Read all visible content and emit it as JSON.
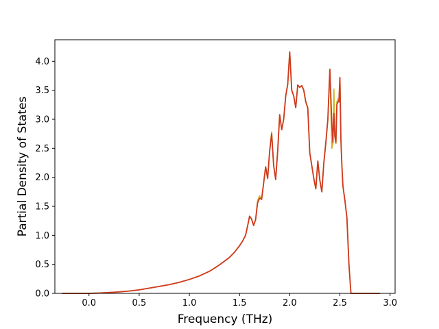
{
  "chart_data": {
    "type": "line",
    "title": "",
    "xlabel": "Frequency (THz)",
    "ylabel": "Partial Density of States",
    "xlim": [
      -0.34,
      3.05
    ],
    "ylim": [
      0.0,
      4.37
    ],
    "xticks": [
      "0.0",
      "0.5",
      "1.0",
      "1.5",
      "2.0",
      "2.5",
      "3.0"
    ],
    "yticks": [
      "0.0",
      "0.5",
      "1.0",
      "1.5",
      "2.0",
      "2.5",
      "3.0",
      "3.5",
      "4.0"
    ],
    "grid": false,
    "legend": "none",
    "series": [
      {
        "color": "#d4b52c",
        "x": [
          -0.27,
          -0.1,
          0.0,
          0.1,
          0.2,
          0.3,
          0.4,
          0.5,
          0.6,
          0.7,
          0.8,
          0.9,
          1.0,
          1.1,
          1.2,
          1.3,
          1.4,
          1.45,
          1.5,
          1.53,
          1.56,
          1.58,
          1.6,
          1.62,
          1.64,
          1.66,
          1.68,
          1.7,
          1.72,
          1.74,
          1.76,
          1.78,
          1.8,
          1.82,
          1.84,
          1.86,
          1.88,
          1.9,
          1.92,
          1.94,
          1.96,
          1.98,
          2.0,
          2.02,
          2.04,
          2.06,
          2.08,
          2.1,
          2.12,
          2.14,
          2.16,
          2.18,
          2.2,
          2.22,
          2.24,
          2.26,
          2.28,
          2.3,
          2.32,
          2.34,
          2.36,
          2.38,
          2.4,
          2.42,
          2.43,
          2.44,
          2.45,
          2.46,
          2.47,
          2.48,
          2.49,
          2.5,
          2.51,
          2.52,
          2.53,
          2.55,
          2.57,
          2.59,
          2.61,
          2.62,
          2.63,
          2.64,
          2.65,
          2.7,
          2.8,
          2.9
        ],
        "y": [
          0.0,
          0.0,
          0.0,
          0.005,
          0.015,
          0.025,
          0.04,
          0.06,
          0.09,
          0.12,
          0.15,
          0.19,
          0.24,
          0.3,
          0.38,
          0.49,
          0.62,
          0.71,
          0.82,
          0.9,
          1.0,
          1.16,
          1.33,
          1.28,
          1.17,
          1.27,
          1.6,
          1.68,
          1.62,
          1.9,
          2.18,
          1.98,
          2.45,
          2.78,
          2.2,
          1.98,
          2.45,
          3.08,
          2.82,
          3.0,
          3.4,
          3.6,
          4.16,
          3.5,
          3.4,
          3.2,
          3.59,
          3.55,
          3.58,
          3.5,
          3.3,
          3.18,
          2.42,
          2.2,
          1.98,
          1.8,
          2.28,
          1.95,
          1.75,
          2.25,
          2.6,
          3.0,
          3.86,
          2.5,
          2.58,
          3.52,
          2.7,
          2.58,
          3.3,
          3.35,
          3.3,
          3.72,
          2.65,
          2.2,
          1.85,
          1.6,
          1.3,
          0.5,
          0.0,
          0.0,
          0.0,
          0.0,
          0.0,
          0.0,
          0.0,
          0.0
        ]
      },
      {
        "color": "#d03a22",
        "x": [
          -0.27,
          -0.1,
          0.0,
          0.1,
          0.2,
          0.3,
          0.4,
          0.5,
          0.6,
          0.7,
          0.8,
          0.9,
          1.0,
          1.1,
          1.2,
          1.3,
          1.4,
          1.45,
          1.5,
          1.53,
          1.56,
          1.58,
          1.6,
          1.62,
          1.64,
          1.66,
          1.68,
          1.7,
          1.72,
          1.74,
          1.76,
          1.78,
          1.8,
          1.82,
          1.84,
          1.86,
          1.88,
          1.9,
          1.92,
          1.94,
          1.96,
          1.98,
          2.0,
          2.02,
          2.04,
          2.06,
          2.08,
          2.1,
          2.12,
          2.14,
          2.16,
          2.18,
          2.2,
          2.22,
          2.24,
          2.26,
          2.28,
          2.3,
          2.32,
          2.34,
          2.36,
          2.38,
          2.4,
          2.42,
          2.43,
          2.44,
          2.45,
          2.46,
          2.47,
          2.48,
          2.49,
          2.5,
          2.51,
          2.52,
          2.53,
          2.55,
          2.57,
          2.59,
          2.61,
          2.62,
          2.63,
          2.64,
          2.65,
          2.7,
          2.8,
          2.9
        ],
        "y": [
          0.0,
          0.0,
          0.0,
          0.005,
          0.015,
          0.025,
          0.04,
          0.06,
          0.09,
          0.12,
          0.15,
          0.19,
          0.24,
          0.3,
          0.38,
          0.49,
          0.62,
          0.71,
          0.82,
          0.9,
          1.0,
          1.16,
          1.33,
          1.28,
          1.17,
          1.27,
          1.56,
          1.64,
          1.62,
          1.9,
          2.18,
          1.98,
          2.45,
          2.75,
          2.2,
          1.96,
          2.45,
          3.08,
          2.82,
          3.0,
          3.4,
          3.6,
          4.16,
          3.5,
          3.4,
          3.2,
          3.59,
          3.55,
          3.58,
          3.5,
          3.3,
          3.2,
          2.42,
          2.2,
          1.98,
          1.8,
          2.28,
          1.95,
          1.75,
          2.25,
          2.6,
          3.0,
          3.86,
          2.9,
          2.6,
          3.1,
          2.7,
          2.6,
          3.25,
          3.3,
          3.3,
          3.72,
          2.65,
          2.2,
          1.85,
          1.6,
          1.3,
          0.5,
          0.0,
          0.0,
          0.0,
          0.0,
          0.0,
          0.0,
          0.0,
          0.0
        ]
      }
    ]
  }
}
